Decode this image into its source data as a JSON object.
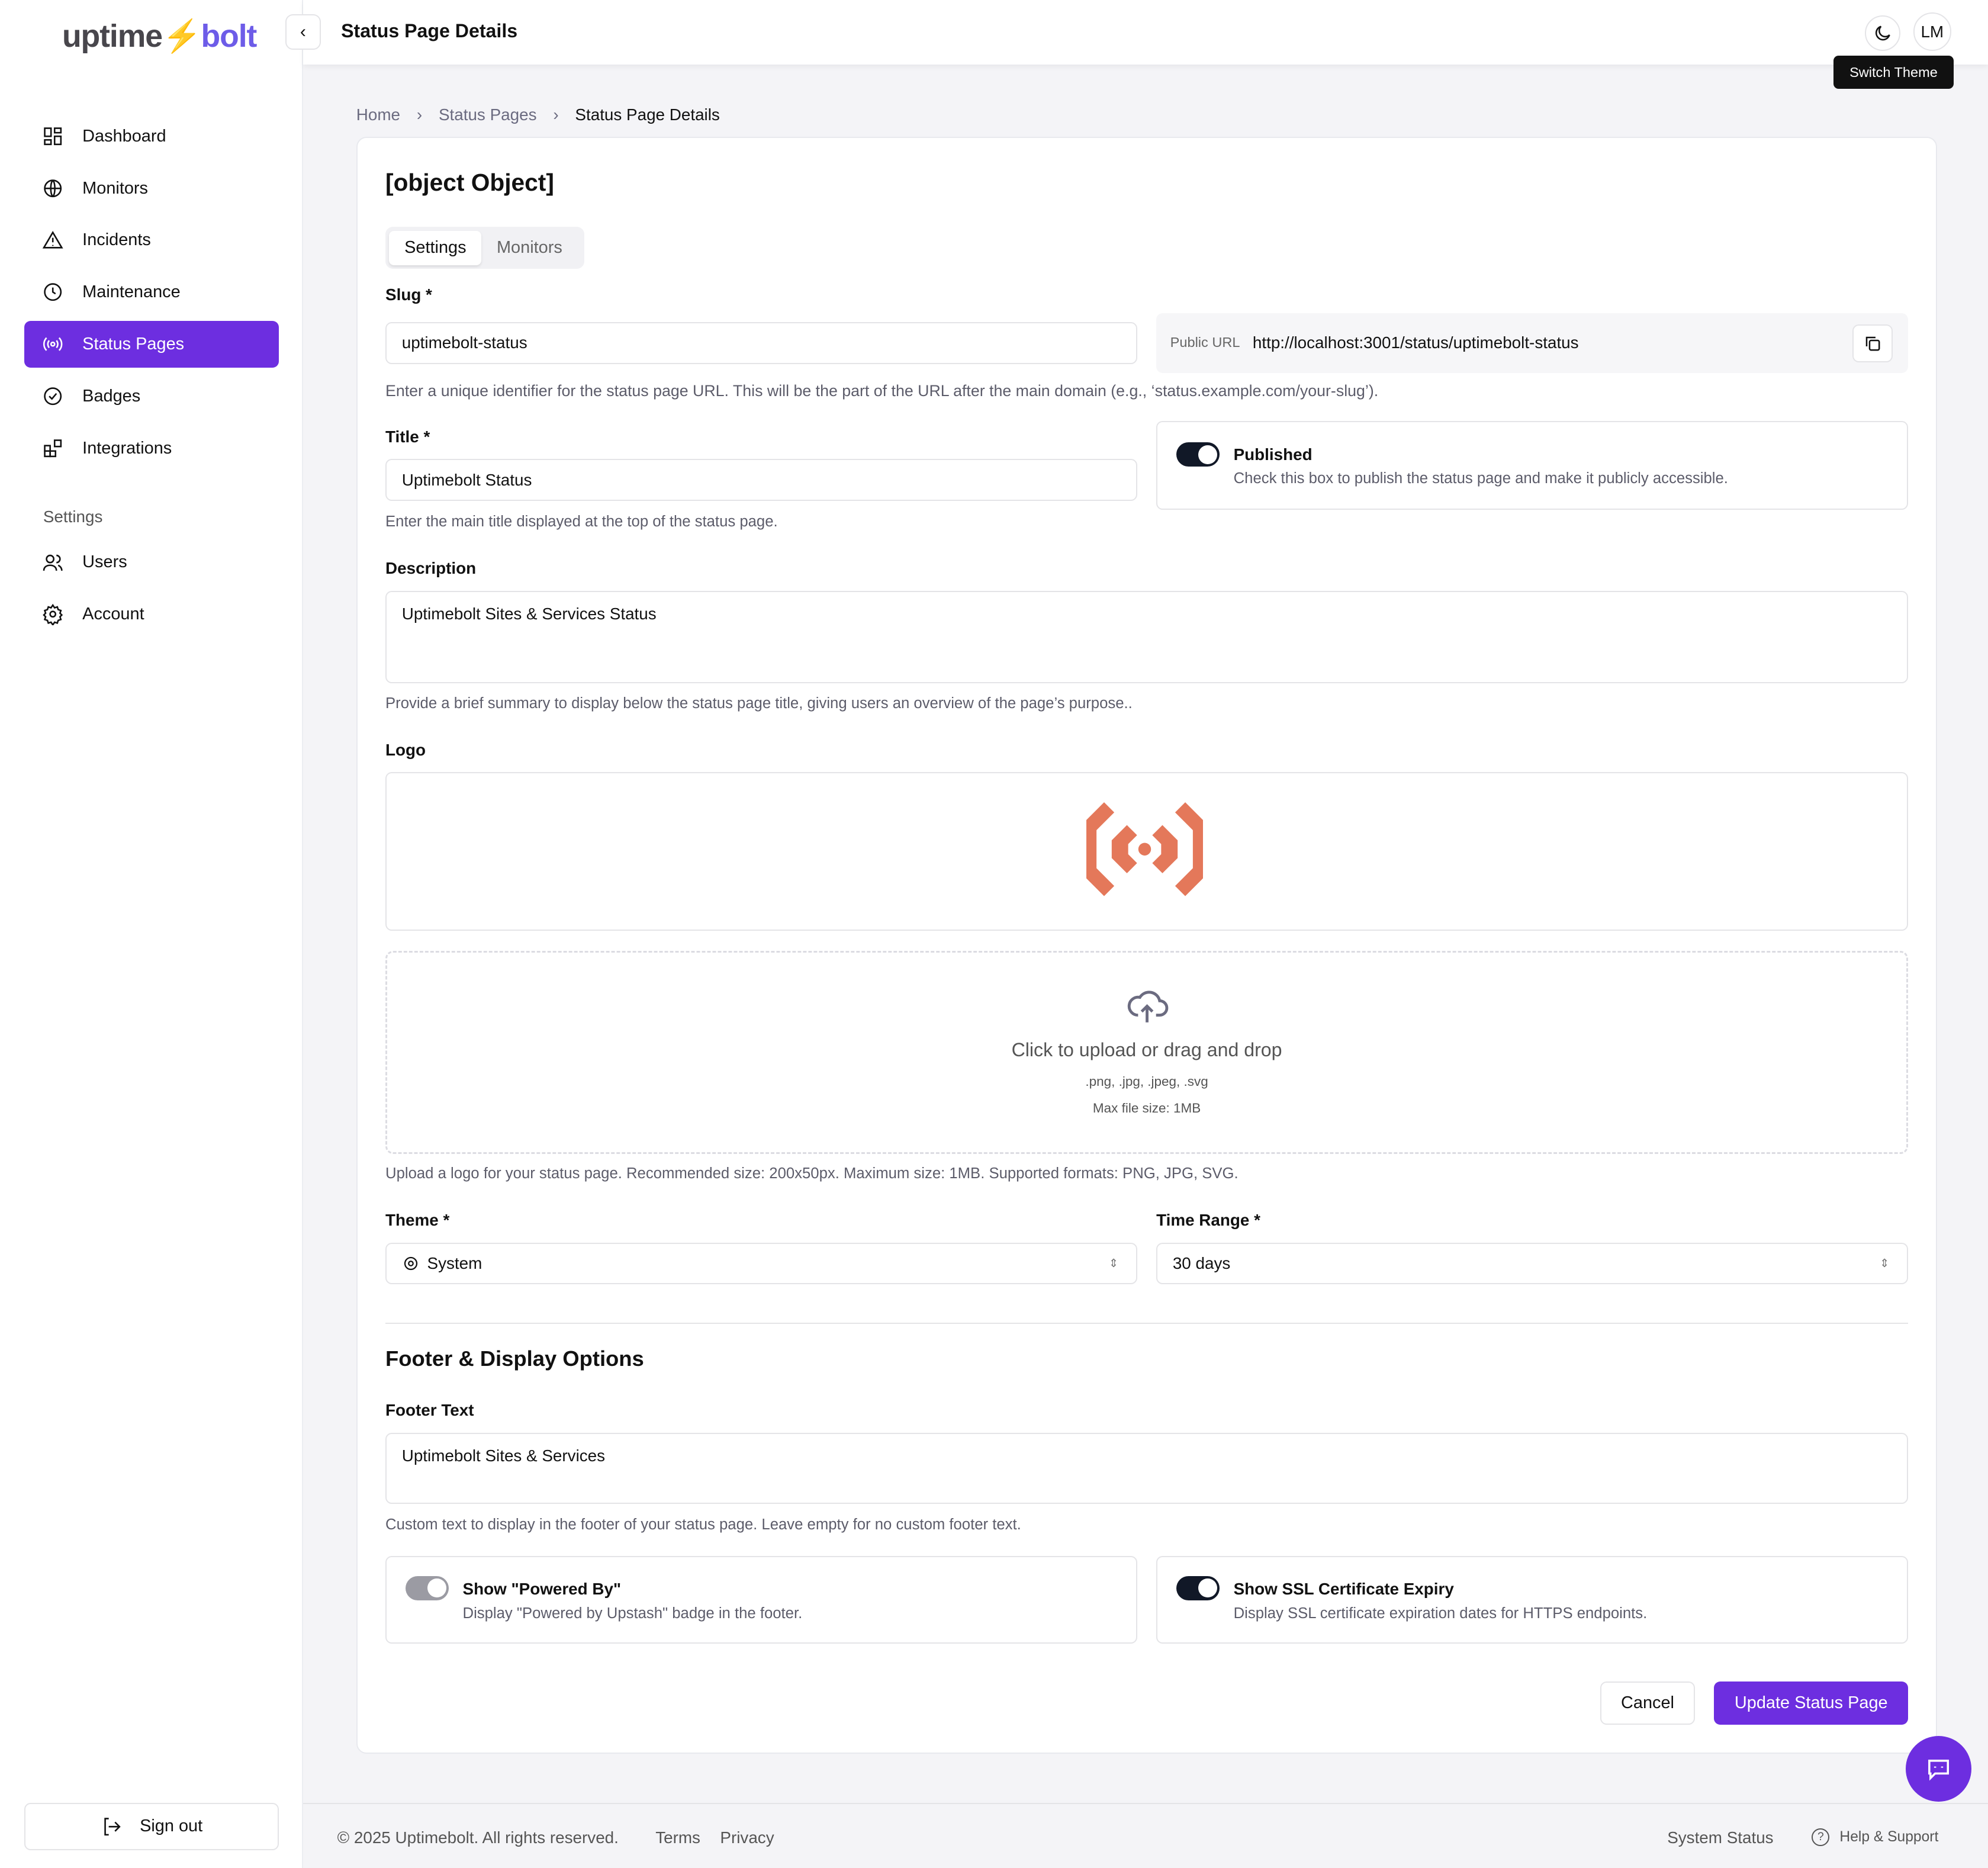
{
  "brand": {
    "part1": "uptime",
    "bolt": "⚡",
    "part2": "bolt"
  },
  "sidebar": {
    "items": [
      {
        "label": "Dashboard",
        "icon": "dashboard-icon"
      },
      {
        "label": "Monitors",
        "icon": "globe-icon"
      },
      {
        "label": "Incidents",
        "icon": "alert-triangle-icon"
      },
      {
        "label": "Maintenance",
        "icon": "clock-icon"
      },
      {
        "label": "Status Pages",
        "icon": "radio-icon",
        "active": true
      },
      {
        "label": "Badges",
        "icon": "badge-check-icon"
      },
      {
        "label": "Integrations",
        "icon": "blocks-icon"
      }
    ],
    "section": "Settings",
    "settings_items": [
      {
        "label": "Users",
        "icon": "users-icon"
      },
      {
        "label": "Account",
        "icon": "gear-icon"
      }
    ],
    "sign_out": "Sign out"
  },
  "header": {
    "title": "Status Page Details",
    "avatar": "LM",
    "tooltip": "Switch Theme"
  },
  "breadcrumb": [
    "Home",
    "Status Pages",
    "Status Page Details"
  ],
  "form": {
    "title": {
      "label": "Title *",
      "value": "Uptimebolt Status",
      "hint": "Enter the main title displayed at the top of the status page."
    },
    "tabs": [
      "Settings",
      "Monitors"
    ],
    "slug": {
      "label": "Slug *",
      "value": "uptimebolt-status",
      "hint": "Enter a unique identifier for the status page URL. This will be the part of the URL after the main domain (e.g., ‘status.example.com/your-slug’)."
    },
    "public_url": {
      "label": "Public URL",
      "value": "http://localhost:3001/status/uptimebolt-status"
    },
    "published": {
      "label": "Published",
      "desc": "Check this box to publish the status page and make it publicly accessible.",
      "on": true
    },
    "description": {
      "label": "Description",
      "value": "Uptimebolt Sites & Services Status",
      "hint": "Provide a brief summary to display below the status page title, giving users an overview of the page’s purpose.."
    },
    "logo": {
      "label": "Logo",
      "upload": "Click to upload or drag and drop",
      "formats": ".png, .jpg, .jpeg, .svg",
      "max": "Max file size: 1MB",
      "hint": "Upload a logo for your status page. Recommended size: 200x50px. Maximum size: 1MB. Supported formats: PNG, JPG, SVG.",
      "color": "#e4785a"
    },
    "theme": {
      "label": "Theme *",
      "value": "System"
    },
    "time_range": {
      "label": "Time Range *",
      "value": "30 days"
    },
    "footer_section": "Footer & Display Options",
    "footer_text": {
      "label": "Footer Text",
      "value": "Uptimebolt Sites & Services",
      "hint": "Custom text to display in the footer of your status page. Leave empty for no custom footer text."
    },
    "powered_by": {
      "label": "Show \"Powered By\"",
      "desc": "Display \"Powered by Upstash\" badge in the footer.",
      "on": false
    },
    "ssl": {
      "label": "Show SSL Certificate Expiry",
      "desc": "Display SSL certificate expiration dates for HTTPS endpoints.",
      "on": true
    },
    "cancel": "Cancel",
    "submit": "Update Status Page"
  },
  "footer": {
    "copyright": "© 2025 Uptimebolt. All rights reserved.",
    "links": [
      "Terms",
      "Privacy"
    ],
    "system_status": "System Status",
    "help": "Help & Support"
  },
  "colors": {
    "accent": "#6d2ee0"
  }
}
